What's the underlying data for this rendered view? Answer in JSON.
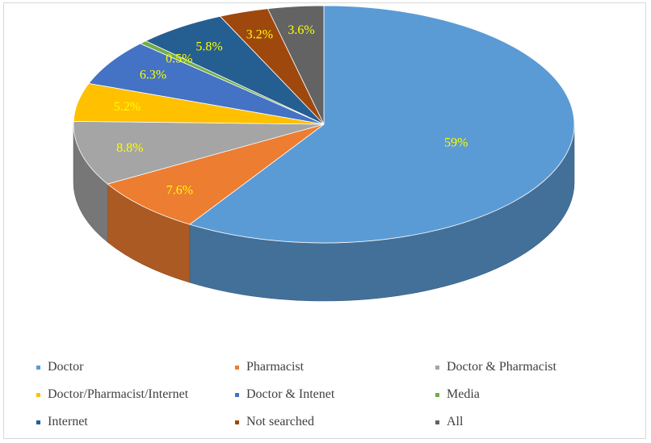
{
  "chart_data": {
    "type": "pie",
    "categories": [
      "Doctor",
      "Pharmacist",
      "Doctor & Pharmacist",
      "Doctor/Pharmacist/Internet",
      "Doctor & Intenet",
      "Media",
      "Internet",
      "Not searched",
      "All"
    ],
    "values": [
      59,
      7.6,
      8.8,
      5.2,
      6.3,
      0.5,
      5.8,
      3.2,
      3.6
    ],
    "data_labels": [
      "59%",
      "7.6%",
      "8.8%",
      "5.2%",
      "6.3%",
      "0.5%",
      "5.8%",
      "3.2%",
      "3.6%"
    ],
    "colors": [
      "#5b9bd5",
      "#ed7d31",
      "#a5a5a5",
      "#ffc000",
      "#4472c4",
      "#70ad47",
      "#255e91",
      "#9e480e",
      "#636363"
    ],
    "style": "3d",
    "legend_position": "bottom",
    "title": ""
  }
}
